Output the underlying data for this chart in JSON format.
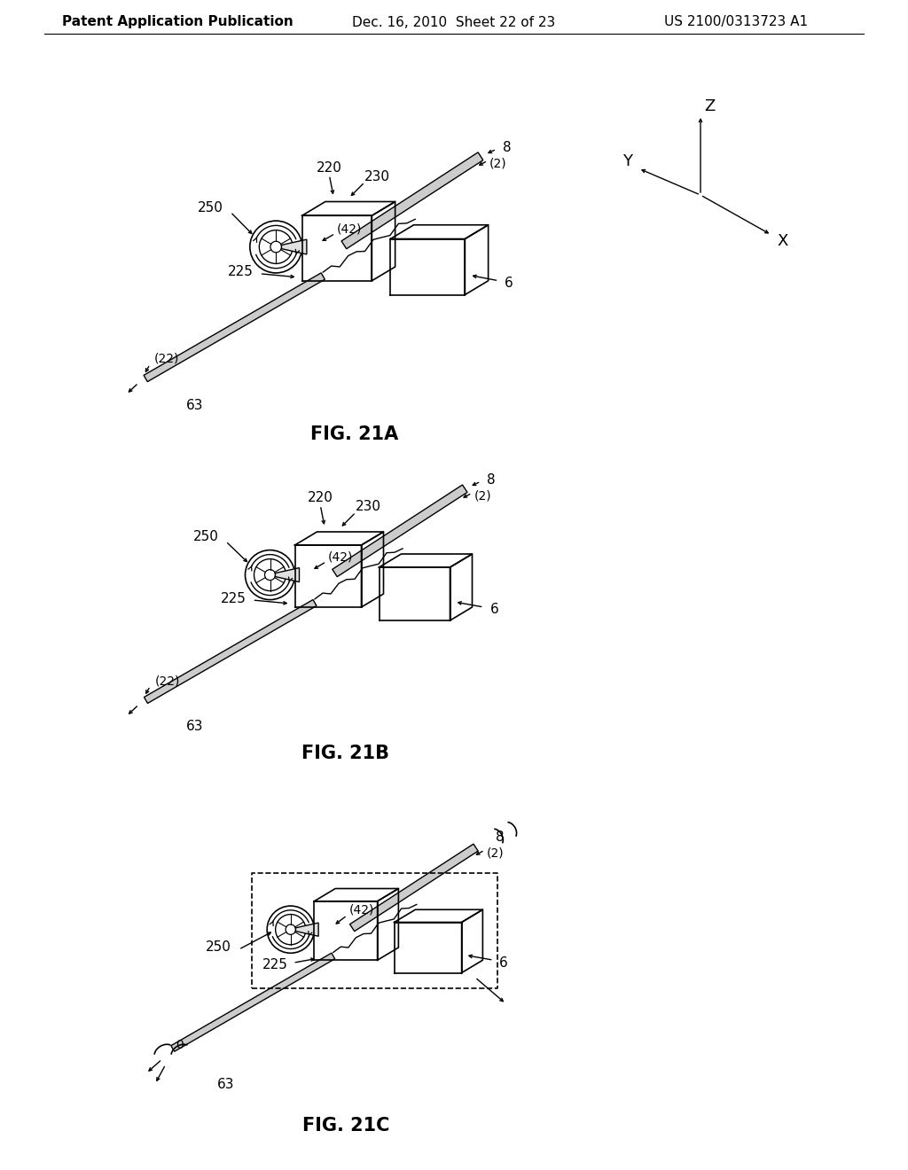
{
  "header_left": "Patent Application Publication",
  "header_center": "Dec. 16, 2010  Sheet 22 of 23",
  "header_right": "US 2100/0313723 A1",
  "background_color": "#ffffff",
  "line_color": "#000000",
  "text_color": "#000000"
}
